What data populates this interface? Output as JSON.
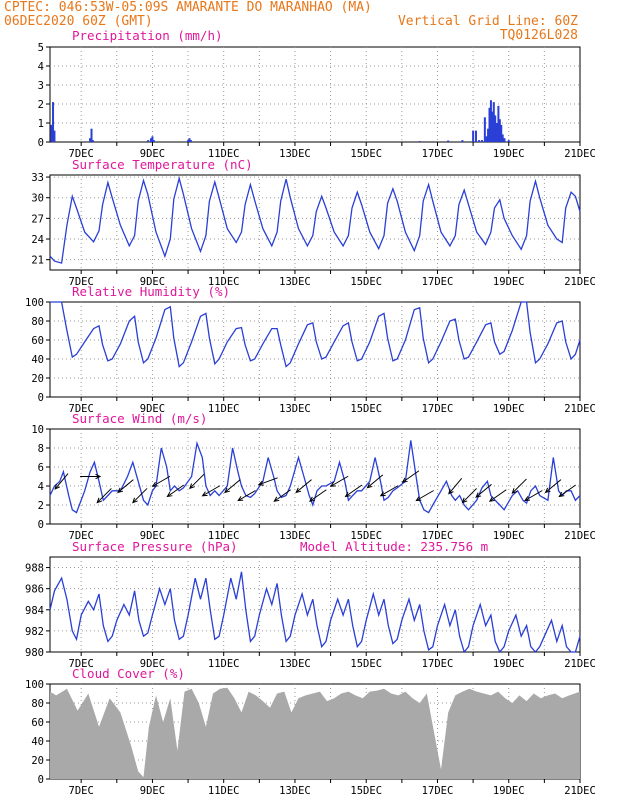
{
  "header": {
    "line1_left": "CPTEC:   046:53W-05:09S  AMARANTE DO MARANHAO (MA)",
    "line2_left": "06DEC2020 60Z (GMT)",
    "line2_right": "Vertical Grid Line: 60Z",
    "line3_right": "TQ0126L028",
    "model_altitude": "Model Altitude: 235.756 m"
  },
  "colors": {
    "header": "#e8771a",
    "title": "#e0179a",
    "line": "#2a3fd6",
    "cloud": "#a9a9a9",
    "grid": "#9a9a9a"
  },
  "chart_data": [
    {
      "type": "bar",
      "title": "Precipitation (mm/h)",
      "ylim": [
        0,
        5
      ],
      "yticks": [
        0,
        1,
        2,
        3,
        4,
        5
      ],
      "xlim": [
        6.125,
        21.0
      ],
      "x_tick_labels": [
        "7DEC",
        "9DEC",
        "11DEC",
        "13DEC",
        "15DEC",
        "17DEC",
        "19DEC",
        "21DEC"
      ],
      "x": [
        6.17,
        6.21,
        6.25,
        7.25,
        7.29,
        7.33,
        8.88,
        8.96,
        9.0,
        9.04,
        10.0,
        10.04,
        10.08,
        16.5,
        17.3,
        17.7,
        18.0,
        18.08,
        18.17,
        18.25,
        18.33,
        18.38,
        18.42,
        18.46,
        18.5,
        18.54,
        18.58,
        18.62,
        18.67,
        18.71,
        18.75,
        18.79,
        18.83,
        18.88,
        19.0
      ],
      "values": [
        0.9,
        2.1,
        0.6,
        0.2,
        0.7,
        0.1,
        0.1,
        0.2,
        0.3,
        0.1,
        0.1,
        0.2,
        0.1,
        0.05,
        0.08,
        0.1,
        0.6,
        0.6,
        0.1,
        0.1,
        1.3,
        0.3,
        0.7,
        1.8,
        2.2,
        1.6,
        2.1,
        1.4,
        1.0,
        1.9,
        1.2,
        0.9,
        0.4,
        0.2,
        0.1
      ]
    },
    {
      "type": "line",
      "title": "Surface Temperature (nC)",
      "ylim": [
        19.5,
        33.3
      ],
      "yticks": [
        21,
        24,
        27,
        30,
        33
      ],
      "xlim": [
        6.125,
        21.0
      ],
      "x_tick_labels": [
        "7DEC",
        "9DEC",
        "11DEC",
        "13DEC",
        "15DEC",
        "17DEC",
        "19DEC",
        "21DEC"
      ],
      "x": [
        6.125,
        6.25,
        6.45,
        6.6,
        6.75,
        6.87,
        7.1,
        7.35,
        7.5,
        7.6,
        7.75,
        7.87,
        8.1,
        8.35,
        8.5,
        8.6,
        8.75,
        8.87,
        9.1,
        9.35,
        9.5,
        9.6,
        9.75,
        9.87,
        10.1,
        10.35,
        10.5,
        10.6,
        10.75,
        10.87,
        11.1,
        11.35,
        11.5,
        11.6,
        11.75,
        11.87,
        12.1,
        12.35,
        12.5,
        12.6,
        12.75,
        12.87,
        13.1,
        13.35,
        13.5,
        13.6,
        13.75,
        13.87,
        14.1,
        14.35,
        14.5,
        14.6,
        14.75,
        14.87,
        15.1,
        15.35,
        15.5,
        15.6,
        15.75,
        15.87,
        16.1,
        16.35,
        16.5,
        16.6,
        16.75,
        16.87,
        17.1,
        17.35,
        17.5,
        17.6,
        17.75,
        17.87,
        18.1,
        18.35,
        18.5,
        18.6,
        18.75,
        18.87,
        19.1,
        19.35,
        19.5,
        19.6,
        19.75,
        19.87,
        20.1,
        20.35,
        20.5,
        20.6,
        20.75,
        20.87,
        21.0
      ],
      "values": [
        21.5,
        20.8,
        20.5,
        26.0,
        30.2,
        28.5,
        25.0,
        23.6,
        25.2,
        29.0,
        32.2,
        30.0,
        26.0,
        23.0,
        24.5,
        29.5,
        32.5,
        30.5,
        25.0,
        21.5,
        24.0,
        29.8,
        32.8,
        30.5,
        25.5,
        22.2,
        24.5,
        29.5,
        32.3,
        30.0,
        25.5,
        23.5,
        25.0,
        29.0,
        31.9,
        29.6,
        25.5,
        23.0,
        25.0,
        29.5,
        32.7,
        30.0,
        25.5,
        23.0,
        24.5,
        28.0,
        30.2,
        28.5,
        25.0,
        23.0,
        24.5,
        28.5,
        30.8,
        29.0,
        25.0,
        22.6,
        24.5,
        29.2,
        31.3,
        29.5,
        25.0,
        22.3,
        24.5,
        29.5,
        31.9,
        29.5,
        25.0,
        23.0,
        24.5,
        29.0,
        31.1,
        29.0,
        25.0,
        23.2,
        25.0,
        28.5,
        29.7,
        27.0,
        24.5,
        22.5,
        24.5,
        29.5,
        32.4,
        30.0,
        26.0,
        24.0,
        23.5,
        28.5,
        30.8,
        30.2,
        28.0
      ]
    },
    {
      "type": "line",
      "title": "Relative Humidity (%)",
      "ylim": [
        0,
        100
      ],
      "yticks": [
        0,
        20,
        40,
        60,
        80,
        100
      ],
      "xlim": [
        6.125,
        21.0
      ],
      "x_tick_labels": [
        "7DEC",
        "9DEC",
        "11DEC",
        "13DEC",
        "15DEC",
        "17DEC",
        "19DEC",
        "21DEC"
      ],
      "x": [
        6.125,
        6.25,
        6.45,
        6.6,
        6.75,
        6.87,
        7.1,
        7.35,
        7.5,
        7.6,
        7.75,
        7.87,
        8.1,
        8.35,
        8.5,
        8.6,
        8.75,
        8.87,
        9.1,
        9.35,
        9.5,
        9.6,
        9.75,
        9.87,
        10.1,
        10.35,
        10.5,
        10.6,
        10.75,
        10.87,
        11.1,
        11.35,
        11.5,
        11.6,
        11.75,
        11.87,
        12.1,
        12.35,
        12.5,
        12.6,
        12.75,
        12.87,
        13.1,
        13.35,
        13.5,
        13.6,
        13.75,
        13.87,
        14.1,
        14.35,
        14.5,
        14.6,
        14.75,
        14.87,
        15.1,
        15.35,
        15.5,
        15.6,
        15.75,
        15.87,
        16.1,
        16.35,
        16.5,
        16.6,
        16.75,
        16.87,
        17.1,
        17.35,
        17.5,
        17.6,
        17.75,
        17.87,
        18.1,
        18.35,
        18.5,
        18.6,
        18.75,
        18.87,
        19.1,
        19.35,
        19.5,
        19.6,
        19.75,
        19.87,
        20.1,
        20.35,
        20.5,
        20.6,
        20.75,
        20.87,
        21.0
      ],
      "values": [
        100,
        100,
        100,
        70,
        42,
        45,
        58,
        72,
        75,
        55,
        38,
        40,
        56,
        80,
        85,
        58,
        36,
        40,
        62,
        92,
        95,
        62,
        32,
        36,
        58,
        85,
        88,
        62,
        35,
        40,
        58,
        72,
        73,
        55,
        38,
        40,
        56,
        72,
        72,
        55,
        32,
        36,
        56,
        76,
        78,
        58,
        40,
        42,
        58,
        75,
        78,
        58,
        38,
        40,
        58,
        85,
        88,
        62,
        38,
        40,
        60,
        92,
        94,
        62,
        36,
        40,
        58,
        80,
        82,
        60,
        40,
        42,
        58,
        76,
        78,
        58,
        45,
        48,
        70,
        100,
        100,
        68,
        36,
        40,
        56,
        78,
        80,
        58,
        40,
        45,
        60
      ]
    },
    {
      "type": "line",
      "title": "Surface Wind (m/s)",
      "ylim": [
        0,
        10
      ],
      "yticks": [
        0,
        2,
        4,
        6,
        8,
        10
      ],
      "xlim": [
        6.125,
        21.0
      ],
      "x_tick_labels": [
        "7DEC",
        "9DEC",
        "11DEC",
        "13DEC",
        "15DEC",
        "17DEC",
        "19DEC",
        "21DEC"
      ],
      "x": [
        6.125,
        6.25,
        6.4,
        6.5,
        6.65,
        6.75,
        6.87,
        7.1,
        7.25,
        7.37,
        7.5,
        7.62,
        7.75,
        7.87,
        8.1,
        8.3,
        8.45,
        8.6,
        8.75,
        8.87,
        9.0,
        9.1,
        9.25,
        9.4,
        9.5,
        9.62,
        9.75,
        9.87,
        10.1,
        10.25,
        10.4,
        10.5,
        10.62,
        10.75,
        10.87,
        11.1,
        11.25,
        11.4,
        11.5,
        11.62,
        11.75,
        11.87,
        12.1,
        12.25,
        12.4,
        12.5,
        12.62,
        12.75,
        12.87,
        13.1,
        13.25,
        13.4,
        13.5,
        13.62,
        13.75,
        13.87,
        14.1,
        14.25,
        14.4,
        14.5,
        14.62,
        14.75,
        14.87,
        15.1,
        15.25,
        15.4,
        15.5,
        15.62,
        15.75,
        15.87,
        16.1,
        16.25,
        16.4,
        16.5,
        16.62,
        16.75,
        16.87,
        17.1,
        17.25,
        17.4,
        17.5,
        17.62,
        17.75,
        17.87,
        18.1,
        18.25,
        18.4,
        18.5,
        18.62,
        18.75,
        18.87,
        19.1,
        19.25,
        19.4,
        19.5,
        19.62,
        19.75,
        19.87,
        20.1,
        20.25,
        20.4,
        20.5,
        20.62,
        20.75,
        20.87,
        21.0
      ],
      "values": [
        3.0,
        4.0,
        4.5,
        5.5,
        3.0,
        1.5,
        1.2,
        3.5,
        5.5,
        6.5,
        4.5,
        2.5,
        3.0,
        3.5,
        3.5,
        5.0,
        6.5,
        4.5,
        2.5,
        2.0,
        3.5,
        4.0,
        8.0,
        6.0,
        3.5,
        4.0,
        3.5,
        3.8,
        5.0,
        8.5,
        7.0,
        4.0,
        3.0,
        3.5,
        3.0,
        4.0,
        8.0,
        5.5,
        4.0,
        3.0,
        2.8,
        3.2,
        4.5,
        7.0,
        5.0,
        3.5,
        2.8,
        3.0,
        4.0,
        7.0,
        5.0,
        3.0,
        2.0,
        3.5,
        4.0,
        4.0,
        4.5,
        6.5,
        4.5,
        2.5,
        3.0,
        3.5,
        3.5,
        4.5,
        7.0,
        4.5,
        2.5,
        2.8,
        3.5,
        3.8,
        4.5,
        8.8,
        5.0,
        2.5,
        1.5,
        1.2,
        2.0,
        3.5,
        4.5,
        3.0,
        2.5,
        3.0,
        2.0,
        1.5,
        2.5,
        3.8,
        4.5,
        3.0,
        2.5,
        2.0,
        1.5,
        3.0,
        3.5,
        2.5,
        2.2,
        3.5,
        4.0,
        3.0,
        2.5,
        7.0,
        3.5,
        3.0,
        3.5,
        3.5,
        2.5,
        3.0
      ]
    },
    {
      "type": "line",
      "title": "Surface Pressure (hPa)",
      "ylim": [
        980,
        989
      ],
      "yticks": [
        980,
        982,
        984,
        986,
        988
      ],
      "xlim": [
        6.125,
        21.0
      ],
      "x_tick_labels": [
        "7DEC",
        "9DEC",
        "11DEC",
        "13DEC",
        "15DEC",
        "17DEC",
        "19DEC",
        "21DEC"
      ],
      "x": [
        6.125,
        6.25,
        6.45,
        6.6,
        6.75,
        6.87,
        7.0,
        7.2,
        7.35,
        7.5,
        7.62,
        7.75,
        7.87,
        8.0,
        8.2,
        8.35,
        8.5,
        8.62,
        8.75,
        8.87,
        9.0,
        9.2,
        9.35,
        9.5,
        9.62,
        9.75,
        9.87,
        10.0,
        10.2,
        10.35,
        10.5,
        10.62,
        10.75,
        10.87,
        11.0,
        11.2,
        11.35,
        11.5,
        11.62,
        11.75,
        11.87,
        12.0,
        12.2,
        12.35,
        12.5,
        12.62,
        12.75,
        12.87,
        13.0,
        13.2,
        13.35,
        13.5,
        13.62,
        13.75,
        13.87,
        14.0,
        14.2,
        14.35,
        14.5,
        14.62,
        14.75,
        14.87,
        15.0,
        15.2,
        15.35,
        15.5,
        15.62,
        15.75,
        15.87,
        16.0,
        16.2,
        16.35,
        16.5,
        16.62,
        16.75,
        16.87,
        17.0,
        17.2,
        17.35,
        17.5,
        17.62,
        17.75,
        17.87,
        18.0,
        18.2,
        18.35,
        18.5,
        18.62,
        18.75,
        18.87,
        19.0,
        19.2,
        19.35,
        19.5,
        19.62,
        19.75,
        19.87,
        20.0,
        20.2,
        20.35,
        20.5,
        20.62,
        20.75,
        20.87,
        21.0
      ],
      "values": [
        984.0,
        985.8,
        987.0,
        985.0,
        982.0,
        981.2,
        983.5,
        984.8,
        984.0,
        985.5,
        982.5,
        981.0,
        981.5,
        983.0,
        984.5,
        983.5,
        985.8,
        983.0,
        981.5,
        981.8,
        983.5,
        986.0,
        984.5,
        986.0,
        983.0,
        981.2,
        981.5,
        983.5,
        987.0,
        985.0,
        987.0,
        984.0,
        981.2,
        981.5,
        983.5,
        987.0,
        985.0,
        987.6,
        984.0,
        981.0,
        981.5,
        983.5,
        986.0,
        984.5,
        986.5,
        983.5,
        981.0,
        981.5,
        983.5,
        985.5,
        983.5,
        985.0,
        982.5,
        980.5,
        981.0,
        983.0,
        985.0,
        983.5,
        985.0,
        982.5,
        980.5,
        981.0,
        983.0,
        985.5,
        983.5,
        985.0,
        982.5,
        980.8,
        981.2,
        983.0,
        985.0,
        983.0,
        984.5,
        982.0,
        980.2,
        980.5,
        982.5,
        984.5,
        982.5,
        984.0,
        981.5,
        980.0,
        980.5,
        982.5,
        984.5,
        982.5,
        983.5,
        981.0,
        980.0,
        980.5,
        982.0,
        983.5,
        981.5,
        982.5,
        980.5,
        980.0,
        980.5,
        981.5,
        983.0,
        981.0,
        982.5,
        980.5,
        980.0,
        980.0,
        981.5
      ]
    },
    {
      "type": "area",
      "title": "Cloud Cover (%)",
      "ylim": [
        0,
        100
      ],
      "yticks": [
        0,
        20,
        40,
        60,
        80,
        100
      ],
      "xlim": [
        6.125,
        21.0
      ],
      "x_tick_labels": [
        "7DEC",
        "9DEC",
        "11DEC",
        "13DEC",
        "15DEC",
        "17DEC",
        "19DEC",
        "21DEC"
      ],
      "x": [
        6.125,
        6.3,
        6.6,
        6.9,
        7.2,
        7.5,
        7.8,
        8.1,
        8.4,
        8.6,
        8.75,
        8.9,
        9.1,
        9.3,
        9.5,
        9.7,
        9.9,
        10.1,
        10.3,
        10.5,
        10.7,
        10.9,
        11.1,
        11.3,
        11.5,
        11.7,
        11.9,
        12.1,
        12.3,
        12.5,
        12.7,
        12.9,
        13.1,
        13.3,
        13.5,
        13.7,
        13.9,
        14.1,
        14.3,
        14.5,
        14.7,
        14.9,
        15.1,
        15.3,
        15.5,
        15.7,
        15.9,
        16.1,
        16.3,
        16.5,
        16.7,
        16.9,
        17.1,
        17.3,
        17.5,
        17.7,
        17.9,
        18.1,
        18.3,
        18.5,
        18.7,
        18.9,
        19.1,
        19.3,
        19.5,
        19.7,
        19.9,
        20.1,
        20.3,
        20.5,
        20.7,
        21.0
      ],
      "values": [
        92,
        88,
        95,
        72,
        90,
        55,
        85,
        70,
        35,
        8,
        2,
        55,
        88,
        60,
        85,
        30,
        92,
        95,
        80,
        55,
        90,
        95,
        96,
        85,
        70,
        92,
        88,
        82,
        75,
        90,
        92,
        70,
        85,
        88,
        90,
        92,
        82,
        85,
        90,
        92,
        88,
        85,
        92,
        93,
        95,
        90,
        88,
        92,
        85,
        80,
        90,
        50,
        10,
        70,
        88,
        92,
        95,
        92,
        90,
        88,
        92,
        85,
        80,
        88,
        82,
        90,
        85,
        88,
        90,
        85,
        88,
        92
      ]
    }
  ],
  "wind_arrows": {
    "x": [
      6.45,
      7.25,
      7.65,
      8.25,
      8.65,
      9.25,
      9.65,
      10.25,
      10.65,
      11.25,
      11.65,
      12.25,
      12.65,
      13.25,
      13.65,
      14.25,
      14.65,
      15.25,
      15.65,
      16.25,
      16.65,
      17.5,
      17.9,
      18.3,
      18.7,
      19.3,
      19.7,
      20.25,
      20.65
    ],
    "dir_from_deg": [
      40,
      270,
      45,
      50,
      45,
      60,
      55,
      45,
      60,
      50,
      60,
      70,
      55,
      50,
      55,
      60,
      55,
      50,
      60,
      55,
      60,
      40,
      45,
      50,
      55,
      45,
      60,
      50,
      55
    ],
    "speed": [
      4.5,
      5.0,
      3.0,
      4.0,
      3.0,
      4.5,
      3.5,
      4.5,
      3.5,
      4.0,
      3.0,
      4.5,
      3.0,
      4.0,
      3.0,
      4.5,
      3.5,
      4.5,
      3.5,
      5.0,
      3.0,
      4.0,
      3.0,
      3.5,
      3.0,
      4.0,
      3.0,
      4.0,
      3.5
    ]
  }
}
